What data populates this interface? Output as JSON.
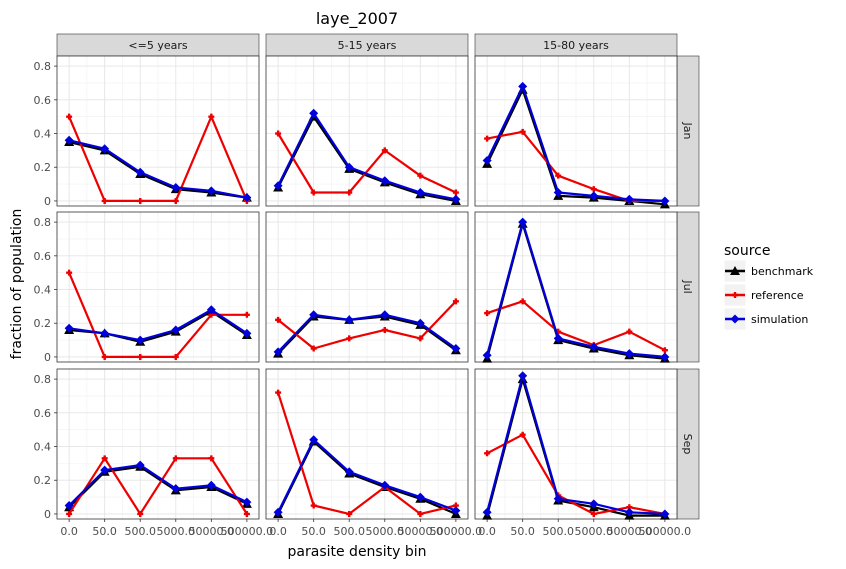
{
  "chart_data": {
    "type": "line",
    "title": "laye_2007",
    "xlabel": "parasite density bin",
    "ylabel": "fraction of population",
    "categories": [
      "0.0",
      "50.0",
      "500.0",
      "5000.0",
      "50000.0",
      "500000.0"
    ],
    "x_tick_labels": [
      "0.0",
      "50.0",
      "500.0",
      "5000.0",
      "50000.0",
      "500000.0"
    ],
    "y_ticks": [
      "0",
      "0.2",
      "0.4",
      "0.6",
      "0.8"
    ],
    "ylim": [
      -0.03,
      0.86
    ],
    "grid": true,
    "columns": [
      "<=5 years",
      "5-15 years",
      "15-80 years"
    ],
    "rows": [
      "Jan",
      "Jul",
      "Sep"
    ],
    "legend": {
      "title": "source",
      "position": "right",
      "items": [
        {
          "label": "benchmark",
          "color": "#000000",
          "marker": "triangle"
        },
        {
          "label": "reference",
          "color": "#ff0000",
          "marker": "plus"
        },
        {
          "label": "simulation",
          "color": "#0000ff",
          "marker": "diamond"
        }
      ]
    },
    "panels": [
      {
        "row": "Jan",
        "col": "<=5 years",
        "benchmark": [
          0.35,
          0.3,
          0.16,
          0.07,
          0.05,
          0.02
        ],
        "reference": [
          0.5,
          0.0,
          0.0,
          0.0,
          0.5,
          0.0
        ],
        "simulation": [
          0.36,
          0.31,
          0.17,
          0.08,
          0.06,
          0.02
        ]
      },
      {
        "row": "Jan",
        "col": "5-15 years",
        "benchmark": [
          0.08,
          0.5,
          0.19,
          0.11,
          0.04,
          0.0
        ],
        "reference": [
          0.4,
          0.05,
          0.05,
          0.3,
          0.15,
          0.05
        ],
        "simulation": [
          0.09,
          0.52,
          0.2,
          0.12,
          0.05,
          0.01
        ]
      },
      {
        "row": "Jan",
        "col": "15-80 years",
        "benchmark": [
          0.22,
          0.66,
          0.03,
          0.02,
          0.0,
          -0.02
        ],
        "reference": [
          0.37,
          0.41,
          0.15,
          0.07,
          0.0,
          0.0
        ],
        "simulation": [
          0.24,
          0.68,
          0.05,
          0.03,
          0.01,
          0.0
        ]
      },
      {
        "row": "Jul",
        "col": "<=5 years",
        "benchmark": [
          0.16,
          0.14,
          0.09,
          0.15,
          0.27,
          0.13
        ],
        "reference": [
          0.5,
          0.0,
          0.0,
          0.0,
          0.25,
          0.25
        ],
        "simulation": [
          0.17,
          0.14,
          0.1,
          0.16,
          0.28,
          0.14
        ]
      },
      {
        "row": "Jul",
        "col": "5-15 years",
        "benchmark": [
          0.02,
          0.24,
          0.22,
          0.24,
          0.19,
          0.04
        ],
        "reference": [
          0.22,
          0.05,
          0.11,
          0.16,
          0.11,
          0.33
        ],
        "simulation": [
          0.03,
          0.25,
          0.22,
          0.25,
          0.2,
          0.05
        ]
      },
      {
        "row": "Jul",
        "col": "15-80 years",
        "benchmark": [
          -0.01,
          0.79,
          0.1,
          0.05,
          0.01,
          -0.01
        ],
        "reference": [
          0.26,
          0.33,
          0.15,
          0.07,
          0.15,
          0.04
        ],
        "simulation": [
          0.01,
          0.8,
          0.11,
          0.06,
          0.02,
          0.0
        ]
      },
      {
        "row": "Sep",
        "col": "<=5 years",
        "benchmark": [
          0.04,
          0.25,
          0.28,
          0.14,
          0.16,
          0.06
        ],
        "reference": [
          0.0,
          0.33,
          0.0,
          0.33,
          0.33,
          0.0
        ],
        "simulation": [
          0.05,
          0.26,
          0.29,
          0.15,
          0.17,
          0.07
        ]
      },
      {
        "row": "Sep",
        "col": "5-15 years",
        "benchmark": [
          0.0,
          0.43,
          0.24,
          0.16,
          0.09,
          0.0
        ],
        "reference": [
          0.72,
          0.05,
          0.0,
          0.16,
          0.0,
          0.05
        ],
        "simulation": [
          0.01,
          0.44,
          0.25,
          0.17,
          0.1,
          0.02
        ]
      },
      {
        "row": "Sep",
        "col": "15-80 years",
        "benchmark": [
          -0.01,
          0.8,
          0.08,
          0.04,
          -0.01,
          -0.01
        ],
        "reference": [
          0.36,
          0.47,
          0.11,
          0.0,
          0.04,
          0.0
        ],
        "simulation": [
          0.01,
          0.82,
          0.09,
          0.06,
          0.01,
          0.0
        ]
      }
    ]
  }
}
